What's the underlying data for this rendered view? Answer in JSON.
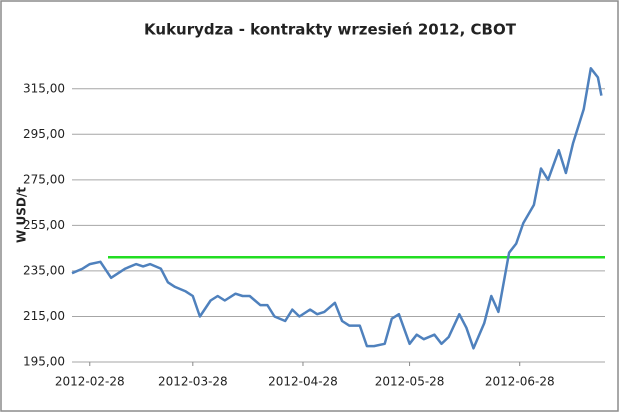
{
  "chart_data": {
    "type": "line",
    "title": "Kukurydza - kontrakty wrzesień 2012, CBOT",
    "y_label": "W USD/t",
    "x": [
      "2012-02-23",
      "2012-02-26",
      "2012-02-28",
      "2012-03-02",
      "2012-03-05",
      "2012-03-07",
      "2012-03-09",
      "2012-03-12",
      "2012-03-14",
      "2012-03-16",
      "2012-03-19",
      "2012-03-21",
      "2012-03-23",
      "2012-03-26",
      "2012-03-28",
      "2012-03-30",
      "2012-04-02",
      "2012-04-04",
      "2012-04-06",
      "2012-04-09",
      "2012-04-11",
      "2012-04-13",
      "2012-04-16",
      "2012-04-18",
      "2012-04-20",
      "2012-04-23",
      "2012-04-25",
      "2012-04-27",
      "2012-04-30",
      "2012-05-02",
      "2012-05-04",
      "2012-05-07",
      "2012-05-09",
      "2012-05-11",
      "2012-05-14",
      "2012-05-16",
      "2012-05-18",
      "2012-05-21",
      "2012-05-23",
      "2012-05-25",
      "2012-05-28",
      "2012-05-30",
      "2012-06-01",
      "2012-06-04",
      "2012-06-06",
      "2012-06-08",
      "2012-06-11",
      "2012-06-13",
      "2012-06-15",
      "2012-06-18",
      "2012-06-20",
      "2012-06-22",
      "2012-06-25",
      "2012-06-27",
      "2012-06-29",
      "2012-07-02",
      "2012-07-04",
      "2012-07-06",
      "2012-07-09",
      "2012-07-11",
      "2012-07-13",
      "2012-07-16",
      "2012-07-18",
      "2012-07-20",
      "2012-07-21"
    ],
    "series": [
      {
        "name": "Kukurydza",
        "color": "#4f81bd",
        "values": [
          234,
          236,
          238,
          239,
          232,
          234,
          236,
          238,
          237,
          238,
          236,
          230,
          228,
          226,
          224,
          215,
          222,
          224,
          222,
          225,
          224,
          224,
          220,
          220,
          215,
          213,
          218,
          215,
          218,
          216,
          217,
          221,
          213,
          211,
          211,
          202,
          202,
          203,
          214,
          216,
          203,
          207,
          205,
          207,
          203,
          206,
          216,
          210,
          201,
          212,
          224,
          217,
          243,
          247,
          256,
          264,
          280,
          275,
          288,
          278,
          291,
          306,
          324,
          320,
          312
        ]
      }
    ],
    "reference_line": {
      "value": 241,
      "color": "#22dd22"
    },
    "xlim": [
      "2012-02-23",
      "2012-07-22"
    ],
    "xticks": [
      "2012-02-28",
      "2012-03-28",
      "2012-04-28",
      "2012-05-28",
      "2012-06-28"
    ],
    "ylim": [
      195,
      325
    ],
    "yticks": [
      {
        "value": 195,
        "label": "195,00"
      },
      {
        "value": 215,
        "label": "215,00"
      },
      {
        "value": 235,
        "label": "235,00"
      },
      {
        "value": 255,
        "label": "255,00"
      },
      {
        "value": 275,
        "label": "275,00"
      },
      {
        "value": 295,
        "label": "295,00"
      },
      {
        "value": 315,
        "label": "315,00"
      }
    ],
    "grid": true
  }
}
